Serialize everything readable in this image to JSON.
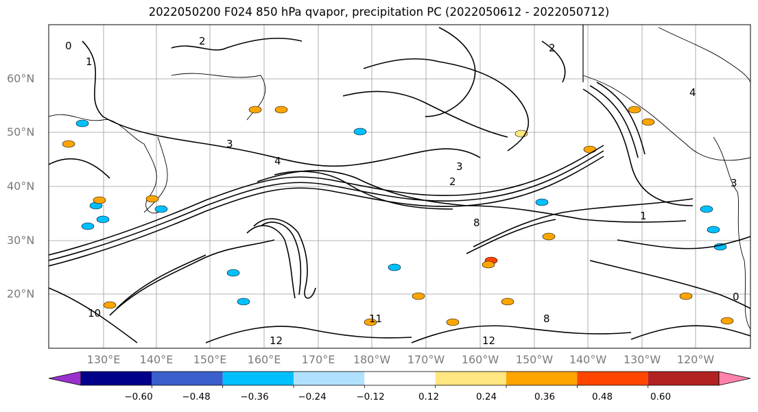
{
  "title": "2022050200 F024 850 hPa qvapor, precipitation PC (2022050612 - 2022050712)",
  "lat_labels": [
    "60°N",
    "50°N",
    "40°N",
    "30°N",
    "20°N"
  ],
  "lon_labels": [
    "130°E",
    "140°E",
    "150°E",
    "160°E",
    "170°E",
    "180°W",
    "170°W",
    "160°W",
    "150°W",
    "140°W",
    "130°W",
    "120°W"
  ],
  "contour_labels": [
    "0",
    "1",
    "2",
    "3",
    "4",
    "8",
    "10",
    "11",
    "12",
    "2",
    "3",
    "4",
    "8",
    "12",
    "0",
    "1",
    "2",
    "3"
  ],
  "colorbar": {
    "tick_labels": [
      "−0.60",
      "−0.48",
      "−0.36",
      "−0.24",
      "−0.12",
      "0.12",
      "0.24",
      "0.36",
      "0.48",
      "0.60"
    ],
    "colors": [
      "#9932cc",
      "#00008b",
      "#3a5fcd",
      "#00bfff",
      "#b0e2ff",
      "#ffffff",
      "#ffe680",
      "#ffa500",
      "#ff4500",
      "#b22222",
      "#ff82ab"
    ]
  }
}
